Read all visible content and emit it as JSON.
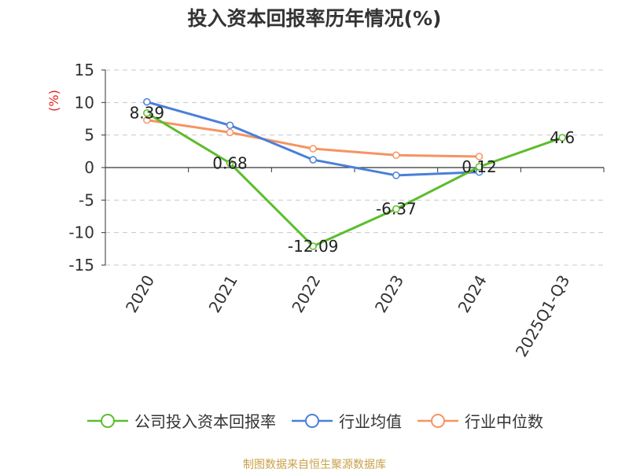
{
  "chart_data": {
    "type": "line",
    "title": "投入资本回报率历年情况(%)",
    "ylabel": "(%)",
    "xlabel": "",
    "categories": [
      "2020",
      "2021",
      "2022",
      "2023",
      "2024",
      "2025Q1-Q3"
    ],
    "ylim": [
      -15,
      15
    ],
    "yticks": [
      15,
      10,
      5,
      0,
      -5,
      -10,
      -15
    ],
    "grid": true,
    "legend_position": "bottom",
    "series": [
      {
        "name": "公司投入资本回报率",
        "color": "#5cbd2c",
        "values": [
          8.39,
          0.68,
          -12.09,
          -6.37,
          0.12,
          4.6
        ],
        "labels": [
          "8.39",
          "0.68",
          "-12.09",
          "-6.37",
          "0.12",
          "4.6"
        ]
      },
      {
        "name": "行业均值",
        "color": "#4a7fd9",
        "values": [
          10.1,
          6.5,
          1.2,
          -1.2,
          -0.7,
          null
        ]
      },
      {
        "name": "行业中位数",
        "color": "#f59462",
        "values": [
          7.3,
          5.4,
          2.9,
          1.9,
          1.7,
          null
        ]
      }
    ]
  },
  "footer": {
    "source": "制图数据来自恒生聚源数据库"
  }
}
